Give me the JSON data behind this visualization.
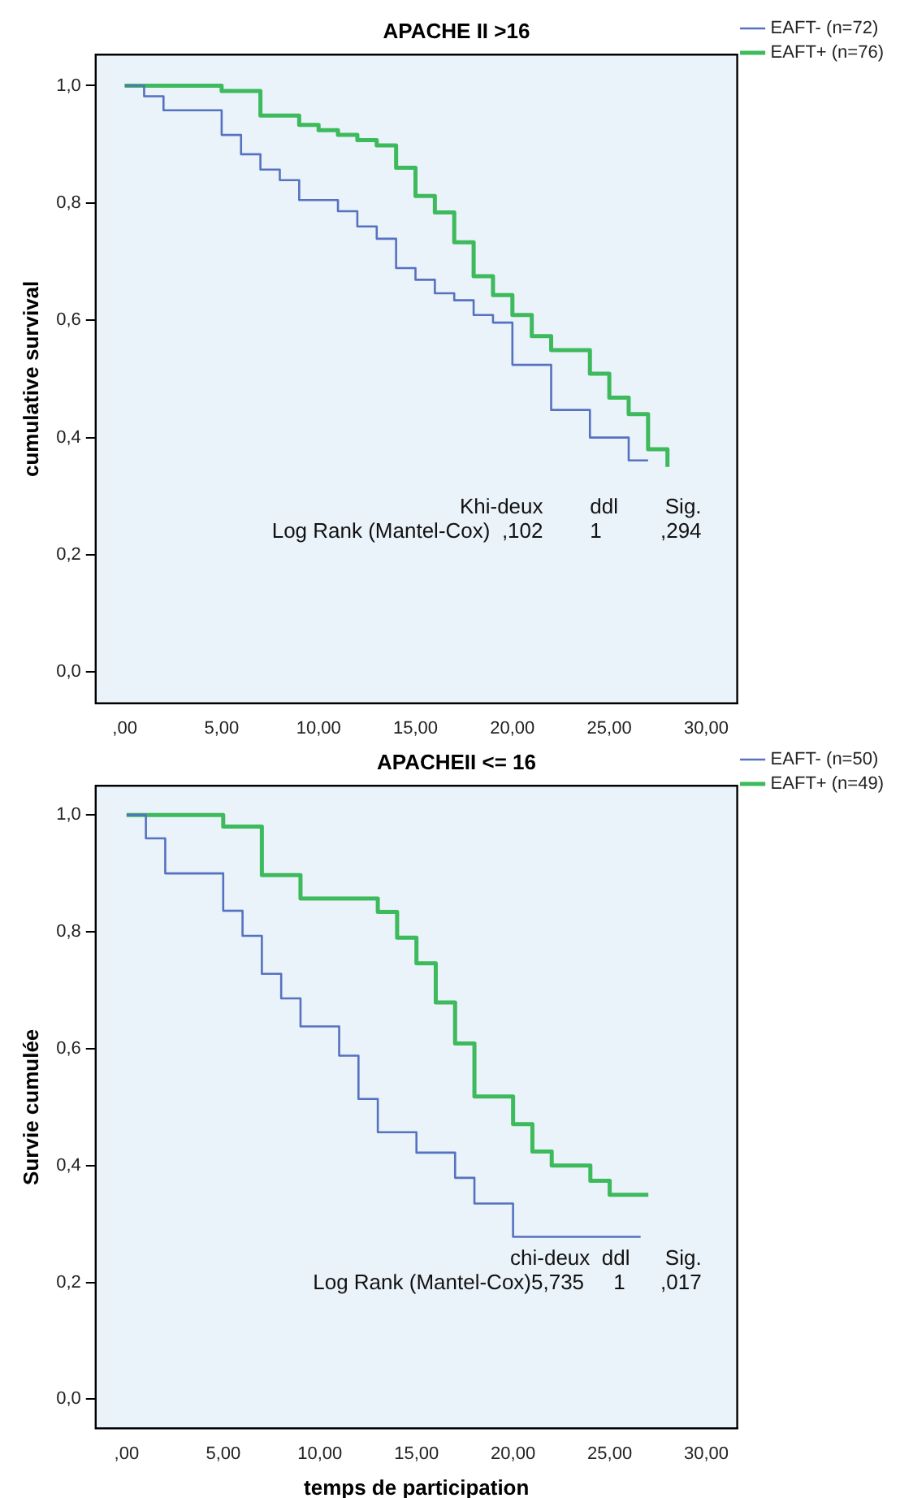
{
  "chart_data": [
    {
      "type": "step",
      "title": "APACHE II >16",
      "ylabel": "cumulative survival",
      "legend": "top right",
      "grid": false,
      "xlim": [
        -1.5,
        31.6
      ],
      "ylim": [
        -0.053,
        1.053
      ],
      "xticks": [
        {
          "value": 0,
          "label": ",00"
        },
        {
          "value": 5,
          "label": "5,00"
        },
        {
          "value": 10,
          "label": "10,00"
        },
        {
          "value": 15,
          "label": "15,00"
        },
        {
          "value": 20,
          "label": "20,00"
        },
        {
          "value": 25,
          "label": "25,00"
        },
        {
          "value": 30,
          "label": "30,00"
        }
      ],
      "yticks": [
        {
          "value": 0,
          "label": "0,0"
        },
        {
          "value": 0.2,
          "label": "0,2"
        },
        {
          "value": 0.4,
          "label": "0,4"
        },
        {
          "value": 0.6,
          "label": "0,6"
        },
        {
          "value": 0.8,
          "label": "0,8"
        },
        {
          "value": 1,
          "label": "1,0"
        }
      ],
      "series": [
        {
          "name": "EAFT- (n=72)",
          "color": "#5572c0",
          "x": [
            0,
            1,
            2,
            5,
            6,
            7,
            8,
            9,
            11,
            12,
            13,
            14,
            15,
            16,
            17,
            18,
            19,
            20,
            22,
            24,
            26,
            27
          ],
          "values": [
            1.0,
            0.982,
            0.958,
            0.916,
            0.883,
            0.857,
            0.839,
            0.805,
            0.786,
            0.76,
            0.739,
            0.689,
            0.669,
            0.646,
            0.634,
            0.609,
            0.596,
            0.524,
            0.447,
            0.4,
            0.361,
            0.361
          ]
        },
        {
          "name": "EAFT+ (n=76)",
          "color": "#3dba5c",
          "x": [
            0,
            5,
            7,
            9,
            10,
            11,
            12,
            13,
            14,
            15,
            16,
            17,
            18,
            19,
            20,
            21,
            22,
            24,
            25,
            26,
            27,
            28
          ],
          "values": [
            1.0,
            0.991,
            0.949,
            0.933,
            0.924,
            0.916,
            0.907,
            0.898,
            0.86,
            0.812,
            0.784,
            0.733,
            0.675,
            0.643,
            0.609,
            0.573,
            0.549,
            0.509,
            0.468,
            0.44,
            0.38,
            0.35
          ]
        }
      ],
      "annotations": [
        "Khi-deux        ddl        Sig.",
        "Log Rank (Mantel-Cox)  ,102        1          ,294"
      ]
    },
    {
      "type": "step",
      "title": "APACHEII <= 16",
      "xlabel": "temps de participation",
      "ylabel": "Survie cumulée",
      "legend": "top right",
      "grid": false,
      "xlim": [
        -1.6,
        31.6
      ],
      "ylim": [
        -0.05,
        1.05
      ],
      "xticks": [
        {
          "value": 0,
          "label": ",00"
        },
        {
          "value": 5,
          "label": "5,00"
        },
        {
          "value": 10,
          "label": "10,00"
        },
        {
          "value": 15,
          "label": "15,00"
        },
        {
          "value": 20,
          "label": "20,00"
        },
        {
          "value": 25,
          "label": "25,00"
        },
        {
          "value": 30,
          "label": "30,00"
        }
      ],
      "yticks": [
        {
          "value": 0,
          "label": "0,0"
        },
        {
          "value": 0.2,
          "label": "0,2"
        },
        {
          "value": 0.4,
          "label": "0,4"
        },
        {
          "value": 0.6,
          "label": "0,6"
        },
        {
          "value": 0.8,
          "label": "0,8"
        },
        {
          "value": 1,
          "label": "1,0"
        }
      ],
      "series": [
        {
          "name": "EAFT- (n=50)",
          "color": "#5572c0",
          "x": [
            0,
            1,
            2,
            5,
            6,
            7,
            8,
            9,
            11,
            12,
            13,
            15,
            17,
            18,
            20,
            26.6
          ],
          "values": [
            1.0,
            0.96,
            0.9,
            0.836,
            0.793,
            0.728,
            0.686,
            0.638,
            0.588,
            0.514,
            0.457,
            0.422,
            0.379,
            0.335,
            0.278,
            0.278
          ]
        },
        {
          "name": "EAFT+ (n=49)",
          "color": "#3dba5c",
          "x": [
            0,
            5,
            7,
            9,
            13,
            14,
            15,
            16,
            17,
            18,
            20,
            21,
            22,
            24,
            25,
            27
          ],
          "values": [
            1.0,
            0.98,
            0.897,
            0.857,
            0.834,
            0.79,
            0.746,
            0.679,
            0.609,
            0.518,
            0.471,
            0.424,
            0.4,
            0.374,
            0.35,
            0.35
          ]
        }
      ],
      "annotations": [
        "chi-deux  ddl      Sig.",
        "Log Rank (Mantel-Cox)5,735     1      ,017"
      ]
    }
  ]
}
